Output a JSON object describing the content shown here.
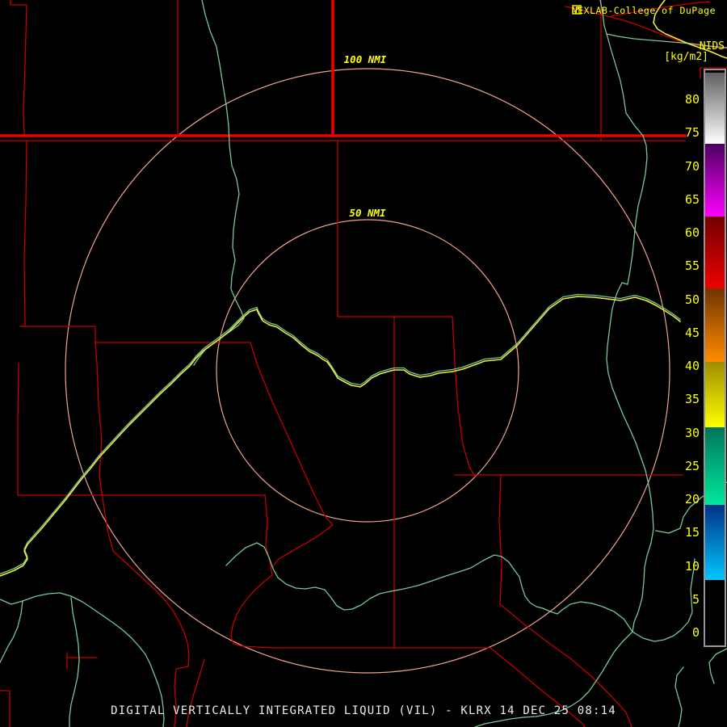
{
  "header": {
    "site_line": "NEXLAB-College of DuPage",
    "product_code": "NIDS",
    "units": "[kg/m2]"
  },
  "rings": {
    "outer_label": "100 NMI",
    "inner_label": "50 NMI"
  },
  "colorbar": {
    "tick_values": [
      80,
      75,
      70,
      65,
      60,
      55,
      50,
      45,
      40,
      35,
      30,
      25,
      20,
      15,
      10,
      5,
      0
    ],
    "segments": [
      {
        "lo": -1.7,
        "hi": 7.9,
        "top": "#000000",
        "bottom": "#000000"
      },
      {
        "lo": 7.9,
        "hi": 19.2,
        "top": "#003087",
        "bottom": "#00c8ff"
      },
      {
        "lo": 19.2,
        "hi": 30.8,
        "top": "#00745a",
        "bottom": "#00e89c"
      },
      {
        "lo": 30.8,
        "hi": 40.6,
        "top": "#a08c00",
        "bottom": "#ffff00"
      },
      {
        "lo": 40.6,
        "hi": 51.6,
        "top": "#703400",
        "bottom": "#ff8c00"
      },
      {
        "lo": 51.6,
        "hi": 62.4,
        "top": "#700000",
        "bottom": "#f00000"
      },
      {
        "lo": 62.4,
        "hi": 73.3,
        "top": "#4c0060",
        "bottom": "#ff00ff"
      },
      {
        "lo": 73.3,
        "hi": 84.0,
        "top": "#606060",
        "bottom": "#ffffff"
      }
    ]
  },
  "footer": {
    "title": "DIGITAL VERTICALLY INTEGRATED LIQUID (VIL) - KLRX 14 DEC 25 08:14"
  },
  "colors": {
    "county_thin": "#c40000",
    "county_thick": "#ec0000",
    "river_green": "#79c795",
    "road_yellow": "#ecec3e",
    "ring_salmon": "#efa48e",
    "label_yellow": "#ffff00",
    "title_white": "#ececec"
  }
}
